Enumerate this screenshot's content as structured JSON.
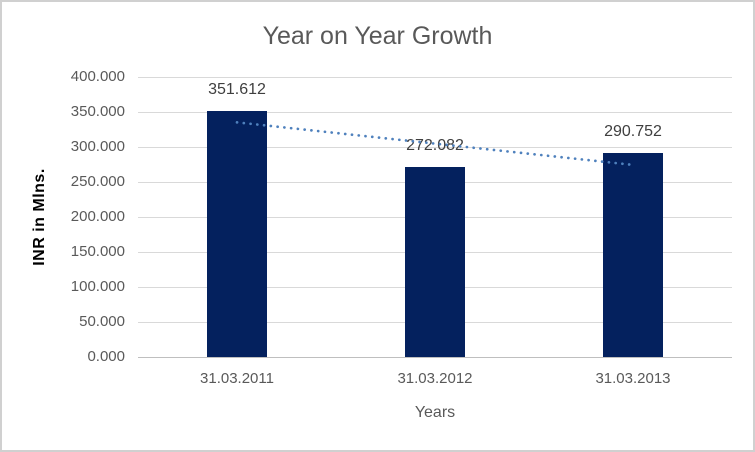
{
  "chart_data": {
    "type": "bar",
    "title": "Year on Year Growth",
    "xlabel": "Years",
    "ylabel": "INR in Mlns.",
    "categories": [
      "31.03.2011",
      "31.03.2012",
      "31.03.2013"
    ],
    "values": [
      351.612,
      272.082,
      290.752
    ],
    "data_labels": [
      "351.612",
      "272.082",
      "290.752"
    ],
    "ylim": [
      0,
      400
    ],
    "ytick_step": 50,
    "ytick_labels": [
      "0.000",
      "50.000",
      "100.000",
      "150.000",
      "200.000",
      "250.000",
      "300.000",
      "350.000",
      "400.000"
    ],
    "grid": true,
    "legend": "none",
    "trendline": {
      "type": "linear",
      "style": "dotted",
      "start_value": 335.2,
      "end_value": 274.4
    },
    "colors": {
      "bar": "#04215e",
      "trendline": "#4f81bd",
      "gridline": "#d9d9d9",
      "axis_line": "#bfbfbf",
      "title_text": "#595959",
      "tick_text": "#595959",
      "data_label_text": "#3f3f3f",
      "frame_border": "#d0d0d0",
      "background": "#ffffff"
    }
  }
}
